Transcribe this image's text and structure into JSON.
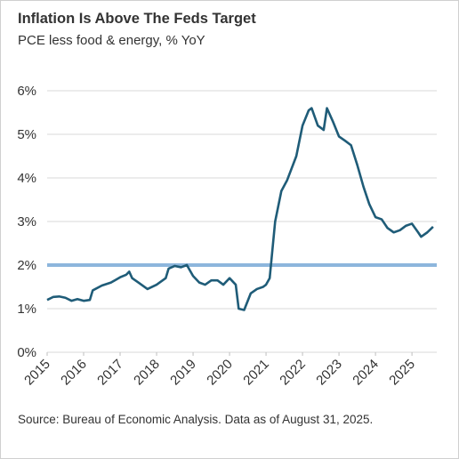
{
  "chart_data": {
    "type": "line",
    "title": "Inflation Is Above The Feds Target",
    "subtitle": "PCE less food & energy, % YoY",
    "source": "Source: Bureau of Economic Analysis. Data as of August 31, 2025.",
    "x": [
      2015.0,
      2015.17,
      2015.33,
      2015.5,
      2015.67,
      2015.83,
      2016.0,
      2016.17,
      2016.25,
      2016.5,
      2016.75,
      2017.0,
      2017.17,
      2017.25,
      2017.33,
      2017.5,
      2017.75,
      2018.0,
      2018.25,
      2018.33,
      2018.5,
      2018.67,
      2018.83,
      2019.0,
      2019.17,
      2019.33,
      2019.5,
      2019.67,
      2019.83,
      2020.0,
      2020.17,
      2020.25,
      2020.4,
      2020.58,
      2020.75,
      2020.92,
      2021.0,
      2021.1,
      2021.25,
      2021.42,
      2021.58,
      2021.83,
      2022.0,
      2022.17,
      2022.25,
      2022.42,
      2022.58,
      2022.67,
      2022.83,
      2023.0,
      2023.17,
      2023.33,
      2023.5,
      2023.67,
      2023.83,
      2024.0,
      2024.17,
      2024.33,
      2024.5,
      2024.67,
      2024.83,
      2025.0,
      2025.17,
      2025.25,
      2025.42,
      2025.58
    ],
    "series": [
      {
        "name": "PCE less food & energy",
        "color": "#1f5c78",
        "values": [
          1.2,
          1.27,
          1.28,
          1.25,
          1.18,
          1.22,
          1.18,
          1.2,
          1.42,
          1.53,
          1.6,
          1.72,
          1.78,
          1.85,
          1.7,
          1.6,
          1.45,
          1.55,
          1.7,
          1.92,
          1.98,
          1.95,
          2.0,
          1.75,
          1.6,
          1.55,
          1.65,
          1.65,
          1.55,
          1.7,
          1.55,
          1.0,
          0.97,
          1.35,
          1.45,
          1.5,
          1.55,
          1.7,
          3.0,
          3.7,
          3.95,
          4.5,
          5.2,
          5.55,
          5.6,
          5.2,
          5.1,
          5.6,
          5.3,
          4.95,
          4.85,
          4.75,
          4.3,
          3.8,
          3.4,
          3.1,
          3.05,
          2.85,
          2.75,
          2.8,
          2.9,
          2.95,
          2.75,
          2.65,
          2.75,
          2.88
        ]
      }
    ],
    "reference_line": {
      "value": 2,
      "color": "#8db6dc"
    },
    "xlim": [
      2015,
      2025.68
    ],
    "xticks": [
      2015,
      2016,
      2017,
      2018,
      2019,
      2020,
      2021,
      2022,
      2023,
      2024,
      2025
    ],
    "ylim": [
      0,
      6
    ],
    "yticks": [
      {
        "value": 0,
        "label": "0%"
      },
      {
        "value": 1,
        "label": "1%"
      },
      {
        "value": 2,
        "label": "2%"
      },
      {
        "value": 3,
        "label": "3%"
      },
      {
        "value": 4,
        "label": "4%"
      },
      {
        "value": 5,
        "label": "5%"
      },
      {
        "value": 6,
        "label": "6%"
      }
    ],
    "grid": true
  }
}
